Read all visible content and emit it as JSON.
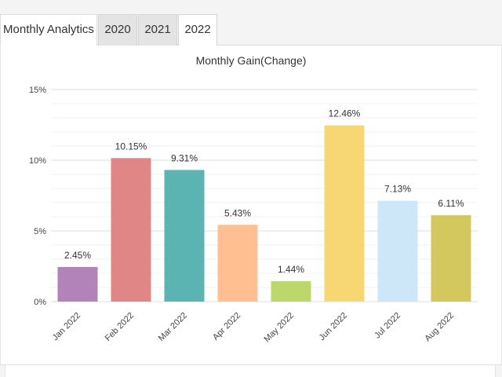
{
  "tabs": {
    "title": "Monthly Analytics",
    "years": [
      {
        "label": "2020",
        "active": false
      },
      {
        "label": "2021",
        "active": false
      },
      {
        "label": "2022",
        "active": true
      }
    ]
  },
  "chart_data": {
    "type": "bar",
    "title": "Monthly Gain(Change)",
    "categories": [
      "Jan 2022",
      "Feb 2022",
      "Mar 2022",
      "Apr 2022",
      "May 2022",
      "Jun 2022",
      "Jul 2022",
      "Aug 2022"
    ],
    "values": [
      2.45,
      10.15,
      9.31,
      5.43,
      1.44,
      12.46,
      7.13,
      6.11
    ],
    "data_labels": [
      "2.45%",
      "10.15%",
      "9.31%",
      "5.43%",
      "1.44%",
      "12.46%",
      "7.13%",
      "6.11%"
    ],
    "colors": [
      "#b283b9",
      "#e08686",
      "#5bb4b2",
      "#ffbf91",
      "#bcd86b",
      "#f7d774",
      "#cde6f8",
      "#d3c85e"
    ],
    "yticks": [
      0,
      5,
      10,
      15
    ],
    "ytick_labels": [
      "0%",
      "5%",
      "10%",
      "15%"
    ],
    "ylim": [
      0,
      15
    ],
    "xlabel": "",
    "ylabel": "",
    "grid": true
  }
}
